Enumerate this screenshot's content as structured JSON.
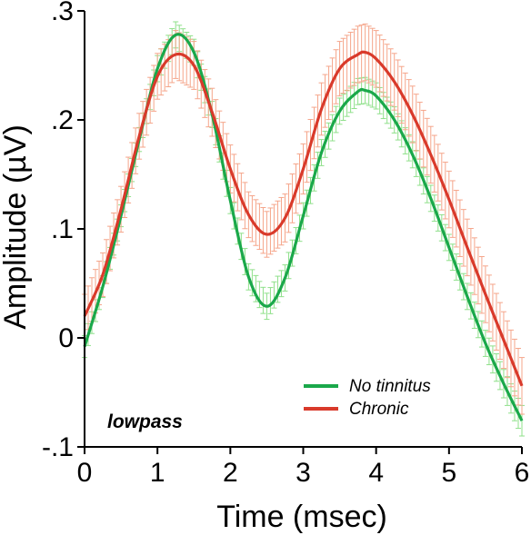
{
  "chart_data": {
    "type": "line",
    "xlabel": "Time (msec)",
    "ylabel": "Amplitude (µV)",
    "xlim": [
      0,
      6
    ],
    "ylim": [
      -0.1,
      0.3
    ],
    "xticks": [
      0,
      1,
      2,
      3,
      4,
      5,
      6
    ],
    "xtick_labels": [
      "0",
      "1",
      "2",
      "3",
      "4",
      "5",
      "6"
    ],
    "yticks": [
      -0.1,
      0,
      0.1,
      0.2,
      0.3
    ],
    "ytick_labels": [
      "-.1",
      "0",
      ".1",
      ".2",
      ".3"
    ],
    "grid": false,
    "legend_position": "bottom-right",
    "annotation": "lowpass",
    "error_bars": true,
    "series": [
      {
        "name": "No tinnitus",
        "color": "#1aa84a",
        "error_color": "#8fe08a",
        "x": [
          0,
          0.25,
          0.5,
          0.75,
          1.0,
          1.25,
          1.5,
          1.75,
          2.0,
          2.25,
          2.5,
          2.75,
          3.0,
          3.25,
          3.5,
          3.75,
          3.85,
          4.0,
          4.25,
          4.5,
          4.75,
          5.0,
          5.25,
          5.5,
          5.75,
          6.0
        ],
        "y": [
          -0.008,
          0.047,
          0.112,
          0.182,
          0.247,
          0.278,
          0.262,
          0.205,
          0.126,
          0.056,
          0.029,
          0.055,
          0.112,
          0.17,
          0.208,
          0.226,
          0.227,
          0.222,
          0.2,
          0.168,
          0.128,
          0.083,
          0.038,
          -0.005,
          -0.042,
          -0.076
        ],
        "error": [
          0.01,
          0.01,
          0.01,
          0.011,
          0.012,
          0.012,
          0.012,
          0.012,
          0.012,
          0.012,
          0.012,
          0.012,
          0.012,
          0.012,
          0.012,
          0.012,
          0.012,
          0.012,
          0.012,
          0.012,
          0.012,
          0.012,
          0.012,
          0.012,
          0.013,
          0.014
        ]
      },
      {
        "name": "Chronic",
        "color": "#d93a2b",
        "error_color": "#f5a58a",
        "x": [
          0,
          0.25,
          0.5,
          0.75,
          1.0,
          1.25,
          1.5,
          1.75,
          2.0,
          2.25,
          2.5,
          2.75,
          3.0,
          3.25,
          3.5,
          3.75,
          3.85,
          4.0,
          4.25,
          4.5,
          4.75,
          5.0,
          5.25,
          5.5,
          5.75,
          6.0
        ],
        "y": [
          0.02,
          0.058,
          0.118,
          0.185,
          0.24,
          0.26,
          0.25,
          0.207,
          0.155,
          0.113,
          0.095,
          0.11,
          0.155,
          0.21,
          0.247,
          0.26,
          0.262,
          0.256,
          0.235,
          0.205,
          0.168,
          0.127,
          0.083,
          0.04,
          -0.002,
          -0.044
        ],
        "error": [
          0.02,
          0.02,
          0.021,
          0.021,
          0.021,
          0.022,
          0.022,
          0.022,
          0.022,
          0.021,
          0.021,
          0.022,
          0.023,
          0.024,
          0.025,
          0.026,
          0.026,
          0.026,
          0.026,
          0.026,
          0.026,
          0.026,
          0.026,
          0.026,
          0.026,
          0.026
        ]
      }
    ]
  }
}
